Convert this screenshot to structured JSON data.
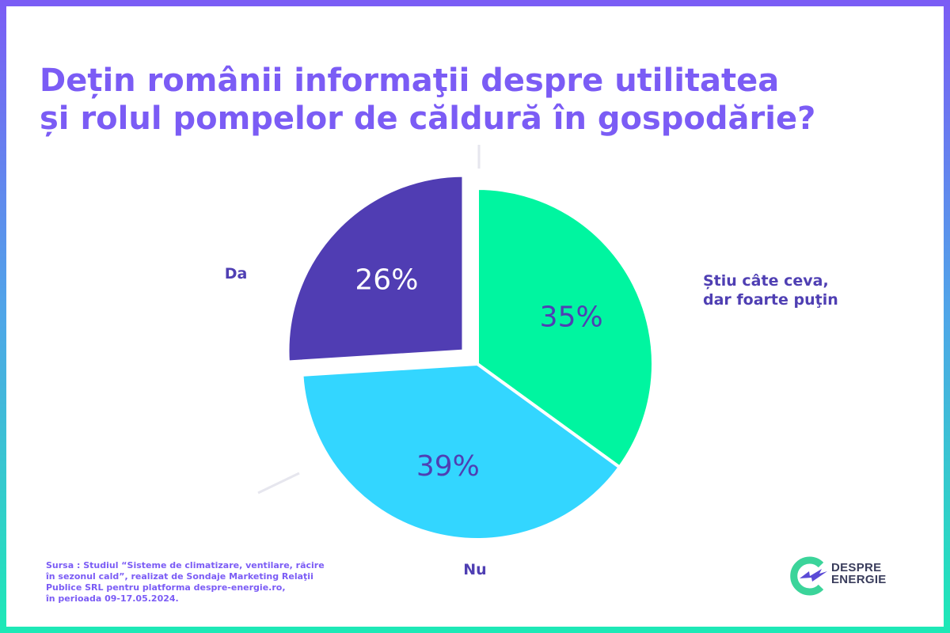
{
  "title_lines": [
    "Dețin românii informaţii despre utilitatea",
    "și rolul pompelor de căldură în gospodărie?"
  ],
  "chart_data": {
    "type": "pie",
    "title": "Dețin românii informaţii despre utilitatea și rolul pompelor de căldură în gospodărie?",
    "slices": [
      {
        "label": "Știu câte ceva, dar foarte puţin",
        "label_lines": [
          "Știu câte ceva,",
          "dar foarte puţin"
        ],
        "value": 35,
        "value_label": "35%",
        "color": "#00f5a0",
        "value_color": "#4f3fb3"
      },
      {
        "label": "Nu",
        "label_lines": [
          "Nu"
        ],
        "value": 39,
        "value_label": "39%",
        "color": "#33d6ff",
        "value_color": "#4f3fb3"
      },
      {
        "label": "Da",
        "label_lines": [
          "Da"
        ],
        "value": 26,
        "value_label": "26%",
        "color": "#503db3",
        "value_color": "#ffffff",
        "exploded": true
      }
    ],
    "label_color": "#4f3fb3"
  },
  "source_lines": [
    "Sursa : Studiul “Sisteme de climatizare, ventilare, răcire",
    "în sezonul cald”, realizat de Sondaje Marketing Relaţii",
    "Publice SRL pentru platforma despre-energie.ro,",
    "în perioada 09-17.05.2024."
  ],
  "logo": {
    "line1": "DESPRE",
    "line2": "ENERGIE",
    "colors": {
      "ring": "#3bd49a",
      "bolt": "#5b4bd6"
    }
  }
}
